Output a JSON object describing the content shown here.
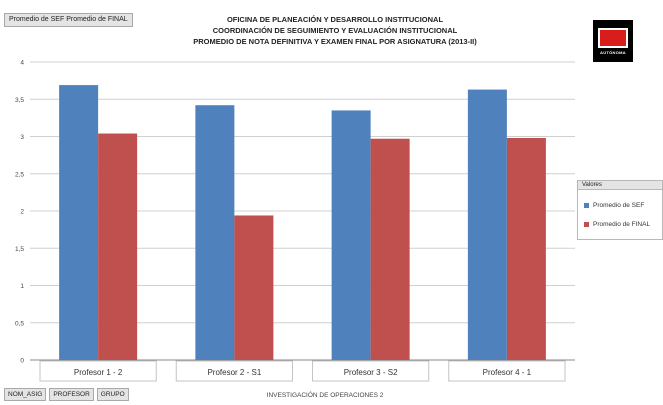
{
  "field_buttons": {
    "values": "Promedio de SEF  Promedio de FINAL"
  },
  "title_lines": [
    "OFICINA DE PLANEACIÓN Y DESARROLLO INSTITUCIONAL",
    "COORDINACIÓN DE SEGUIMIENTO Y EVALUACIÓN INSTITUCIONAL",
    "PROMEDIO DE NOTA DEFINITIVA Y EXAMEN FINAL POR ASIGNATURA (2013-II)"
  ],
  "logo": {
    "text": "AUTÓNOMA"
  },
  "legend": {
    "header": "Valores",
    "placement": "right",
    "items": [
      {
        "label": "Promedio de SEF",
        "color": "#4f81bd"
      },
      {
        "label": "Promedio de FINAL",
        "color": "#c0504d"
      }
    ]
  },
  "bottom_buttons": {
    "field1": "NOM_ASIG",
    "field2": "PROFESOR",
    "field3": "GRUPO"
  },
  "chart_data": {
    "type": "bar",
    "title": "PROMEDIO DE NOTA DEFINITIVA Y EXAMEN FINAL POR ASIGNATURA (2013-II)",
    "categories": [
      "Profesor 1 - 2",
      "Profesor 2 - S1",
      "Profesor 3 - S2",
      "Profesor 4 - 1"
    ],
    "group_label": "INVESTIGACIÓN DE OPERACIONES 2",
    "series": [
      {
        "name": "Promedio de SEF",
        "values": [
          3.69,
          3.42,
          3.35,
          3.63
        ],
        "color": "#4f81bd"
      },
      {
        "name": "Promedio de FINAL",
        "values": [
          3.04,
          1.94,
          2.97,
          2.98
        ],
        "color": "#c0504d"
      }
    ],
    "ylim": [
      0,
      4
    ],
    "yticks": [
      "0",
      "0,5",
      "1",
      "1,5",
      "2",
      "2,5",
      "3",
      "3,5",
      "4"
    ],
    "grid": true
  }
}
